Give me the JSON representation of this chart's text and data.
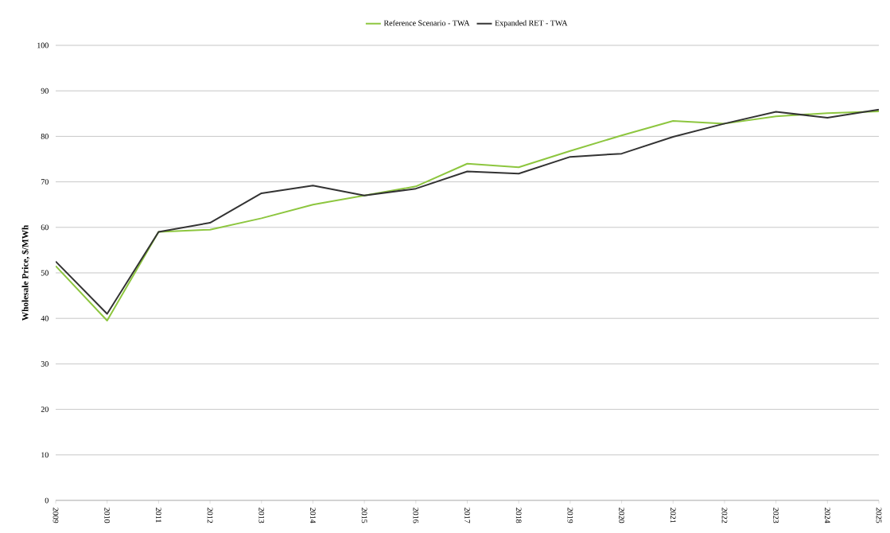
{
  "chart_data": {
    "type": "line",
    "ylabel": "Wholesale Price, $/MWh",
    "categories": [
      "2009",
      "2010",
      "2011",
      "2012",
      "2013",
      "2014",
      "2015",
      "2016",
      "2017",
      "2018",
      "2019",
      "2020",
      "2021",
      "2022",
      "2023",
      "2024",
      "2025"
    ],
    "series": [
      {
        "name": "Reference Scenario - TWA",
        "color": "#8dc63f",
        "values": [
          51.5,
          39.5,
          59,
          59.5,
          62,
          65,
          67,
          69,
          74,
          73.2,
          76.8,
          80.2,
          83.4,
          82.8,
          84.4,
          85.1,
          85.5
        ]
      },
      {
        "name": "Expanded RET - TWA",
        "color": "#333333",
        "values": [
          52.5,
          41,
          59,
          61,
          67.5,
          69.2,
          67,
          68.5,
          72.3,
          71.8,
          75.5,
          76.2,
          79.9,
          82.8,
          85.4,
          84.1,
          85.9
        ]
      }
    ],
    "ylim": [
      0,
      100
    ],
    "yticks": [
      0,
      10,
      20,
      30,
      40,
      50,
      60,
      70,
      80,
      90,
      100
    ],
    "grid": "y",
    "legend": "top",
    "marker": "none",
    "line_style": "solid"
  }
}
